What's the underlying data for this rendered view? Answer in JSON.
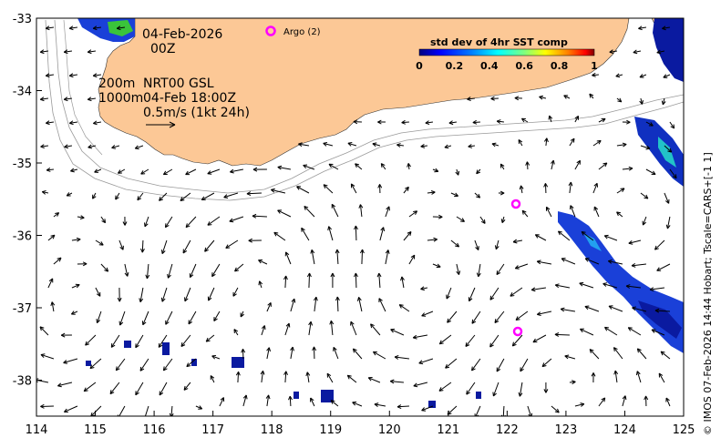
{
  "annotations": {
    "date": "04-Feb-2026",
    "hour": "00Z",
    "depth_line1_left": "200m",
    "depth_line1_right": "NRT00 GSL",
    "depth_line2_left": "1000m",
    "depth_line2_right": "04-Feb 18:00Z",
    "scale_label": "0.5m/s (1kt 24h)"
  },
  "legend": {
    "argo_label": "Argo (2)",
    "colorbar_title": "std dev of 4hr SST comp",
    "colorbar_ticks": [
      "0",
      "0.2",
      "0.4",
      "0.6",
      "0.8",
      "1"
    ],
    "colorbar_colors": [
      "#00007f",
      "#0000ff",
      "#007fff",
      "#00ffff",
      "#7fff7f",
      "#ffff00",
      "#ff7f00",
      "#ff0000",
      "#7f0000"
    ]
  },
  "axes": {
    "x_ticks": [
      "114",
      "115",
      "116",
      "117",
      "118",
      "119",
      "120",
      "121",
      "122",
      "123",
      "124",
      "125"
    ],
    "y_ticks": [
      "-33",
      "-34",
      "-35",
      "-36",
      "-37",
      "-38"
    ]
  },
  "colors": {
    "land": "#fcc896",
    "ocean": "#ffffff",
    "isobath": "#9a9a9a",
    "argo": "#ff00ff"
  },
  "credit": "© IMOS 07-Feb-2026 14:44 Hobart; Tscale=CARS+[-1 1]"
}
